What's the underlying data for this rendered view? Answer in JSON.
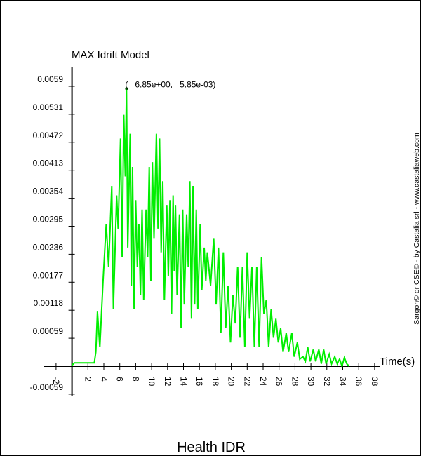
{
  "chart_data": {
    "type": "line",
    "title": "Health IDR",
    "ylabel": "MAX Idrift Model",
    "xlabel": "Time(s)",
    "credit": "Sargon© or CSE© - by Castalia srl - www.castaliaweb.com",
    "xlim": [
      -2,
      38
    ],
    "ylim": [
      -0.00059,
      0.0059
    ],
    "x_ticks": [
      "-2",
      "2",
      "4",
      "6",
      "8",
      "10",
      "12",
      "14",
      "16",
      "18",
      "20",
      "22",
      "24",
      "26",
      "28",
      "30",
      "32",
      "34",
      "36",
      "38"
    ],
    "x_tick_values": [
      -2,
      2,
      4,
      6,
      8,
      10,
      12,
      14,
      16,
      18,
      20,
      22,
      24,
      26,
      28,
      30,
      32,
      34,
      36,
      38
    ],
    "y_ticks": [
      "0.0059",
      "0.00531",
      "0.00472",
      "0.00413",
      "0.00354",
      "0.00295",
      "0.00236",
      "0.00177",
      "0.00118",
      "0.00059",
      "-0.00059"
    ],
    "y_tick_values": [
      0.0059,
      0.00531,
      0.00472,
      0.00413,
      0.00354,
      0.00295,
      0.00236,
      0.00177,
      0.00118,
      0.00059,
      -0.00059
    ],
    "annotation": {
      "label": "(   6.85e+00,   5.85e-03)",
      "x": 6.85,
      "y": 0.00585
    },
    "series": [
      {
        "name": "MAX Idrift Model",
        "color": "#00ee00",
        "x": [
          0,
          0.3,
          2.8,
          3.0,
          3.2,
          3.5,
          3.9,
          4.3,
          4.6,
          5.0,
          5.2,
          5.6,
          5.8,
          6.1,
          6.3,
          6.5,
          6.7,
          6.85,
          7.0,
          7.3,
          7.45,
          7.6,
          7.8,
          8.0,
          8.2,
          8.4,
          8.6,
          8.8,
          9.0,
          9.3,
          9.5,
          9.7,
          9.9,
          10.1,
          10.3,
          10.6,
          10.8,
          11.0,
          11.2,
          11.4,
          11.6,
          11.9,
          12.1,
          12.3,
          12.5,
          12.7,
          12.85,
          13.0,
          13.2,
          13.5,
          13.7,
          13.9,
          14.1,
          14.4,
          14.6,
          14.8,
          15.0,
          15.2,
          15.4,
          15.6,
          15.8,
          16.1,
          16.3,
          16.6,
          16.8,
          17.0,
          17.4,
          17.8,
          18.1,
          18.4,
          18.7,
          19.0,
          19.3,
          19.6,
          19.9,
          20.2,
          20.5,
          20.8,
          21.1,
          21.4,
          21.7,
          22.0,
          22.3,
          22.6,
          22.9,
          23.2,
          23.5,
          23.8,
          24.1,
          24.4,
          24.7,
          25.0,
          25.3,
          25.6,
          25.9,
          26.2,
          26.5,
          26.9,
          27.2,
          27.6,
          27.9,
          28.3,
          28.6,
          29.0,
          29.3,
          29.6,
          29.9,
          30.3,
          30.6,
          31.0,
          31.3,
          31.6,
          31.9,
          32.3,
          32.6,
          33.0,
          33.3,
          33.6,
          33.9,
          34.2,
          34.5,
          34.8
        ],
        "y": [
          2e-05,
          7e-05,
          7e-05,
          0.0003,
          0.00115,
          0.0004,
          0.0018,
          0.003,
          0.0021,
          0.0038,
          0.0012,
          0.0036,
          0.0029,
          0.0048,
          0.0023,
          0.0053,
          0.004,
          0.00585,
          0.0025,
          0.0049,
          0.0017,
          0.0042,
          0.0012,
          0.0035,
          0.0021,
          0.003,
          0.0015,
          0.0033,
          0.0014,
          0.0033,
          0.0023,
          0.0042,
          0.0018,
          0.0043,
          0.0027,
          0.0049,
          0.0029,
          0.0048,
          0.0024,
          0.0039,
          0.0014,
          0.0034,
          0.0019,
          0.0035,
          0.0011,
          0.0036,
          0.002,
          0.0034,
          0.0015,
          0.0032,
          0.0008,
          0.0033,
          0.0013,
          0.0032,
          0.0021,
          0.0039,
          0.001,
          0.0038,
          0.0013,
          0.0033,
          0.0012,
          0.003,
          0.0016,
          0.0025,
          0.0018,
          0.0024,
          0.0017,
          0.0027,
          0.0013,
          0.0025,
          0.0007,
          0.0024,
          0.0008,
          0.0017,
          0.0005,
          0.0015,
          0.0009,
          0.0021,
          0.0006,
          0.0021,
          0.0004,
          0.0024,
          0.001,
          0.0021,
          0.0004,
          0.0021,
          0.0004,
          0.0023,
          0.0011,
          0.0014,
          0.0004,
          0.0012,
          0.0006,
          0.001,
          0.0005,
          0.0008,
          0.0003,
          0.0007,
          0.0003,
          0.0007,
          0.0002,
          0.0005,
          0.00015,
          0.0002,
          0.0001,
          0.0004,
          0.0001,
          0.00035,
          0.0001,
          0.00035,
          5e-05,
          0.00035,
          5e-05,
          0.00025,
          5e-05,
          0.0002,
          5e-05,
          0.00015,
          0.0,
          0.00018,
          5e-05,
          0.0
        ]
      }
    ]
  }
}
